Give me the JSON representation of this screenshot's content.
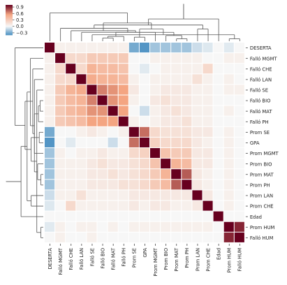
{
  "chart_data": {
    "type": "heatmap",
    "variant": "clustermap",
    "title": "",
    "row_labels": [
      "DESERTA",
      "Falló MGMT",
      "Falló CHE",
      "Falló LAN",
      "Falló SE",
      "Falló BIO",
      "Falló MAT",
      "Falló PH",
      "Prom SE",
      "GPA",
      "Prom MGMT",
      "Prom BIO",
      "Prom MAT",
      "Prom PH",
      "Prom LAN",
      "Prom CHE",
      "Edad",
      "Prom HUM",
      "Falló HUM"
    ],
    "col_labels": [
      "DESERTA",
      "Falló MGMT",
      "Falló CHE",
      "Falló LAN",
      "Falló SE",
      "Falló BIO",
      "Falló MAT",
      "Falló PH",
      "Prom SE",
      "GPA",
      "Prom MGMT",
      "Prom BIO",
      "Prom MAT",
      "Prom PH",
      "Prom LAN",
      "Prom CHE",
      "Edad",
      "Prom HUM",
      "Falló HUM"
    ],
    "matrix": [
      [
        1.0,
        0.05,
        0.05,
        0.05,
        0.05,
        0.05,
        0.05,
        0.05,
        -0.3,
        -0.38,
        -0.2,
        -0.2,
        -0.2,
        -0.2,
        -0.1,
        -0.06,
        0.0,
        -0.05,
        0.0
      ],
      [
        0.05,
        1.0,
        0.2,
        0.2,
        0.3,
        0.3,
        0.3,
        0.3,
        0.0,
        0.0,
        0.05,
        0.05,
        0.05,
        0.05,
        0.05,
        0.0,
        0.0,
        0.05,
        0.05
      ],
      [
        0.05,
        0.2,
        1.0,
        0.2,
        0.45,
        0.4,
        0.4,
        0.35,
        0.0,
        -0.05,
        0.0,
        0.05,
        0.05,
        0.05,
        0.05,
        0.2,
        0.0,
        0.0,
        0.0
      ],
      [
        0.05,
        0.2,
        0.2,
        1.0,
        0.5,
        0.45,
        0.45,
        0.4,
        0.05,
        0.0,
        0.05,
        0.05,
        0.05,
        0.05,
        0.15,
        0.05,
        0.0,
        0.05,
        0.0
      ],
      [
        0.05,
        0.3,
        0.45,
        0.5,
        1.0,
        0.65,
        0.6,
        0.55,
        0.1,
        0.0,
        0.05,
        0.1,
        0.1,
        0.1,
        0.05,
        0.05,
        0.0,
        0.05,
        0.05
      ],
      [
        0.05,
        0.3,
        0.4,
        0.45,
        0.65,
        1.0,
        0.6,
        0.55,
        0.05,
        0.0,
        0.1,
        0.15,
        0.1,
        0.1,
        0.05,
        0.05,
        0.0,
        0.0,
        0.0
      ],
      [
        0.05,
        0.3,
        0.4,
        0.45,
        0.6,
        0.6,
        1.0,
        0.55,
        0.0,
        -0.1,
        0.05,
        0.1,
        0.15,
        0.1,
        0.05,
        0.05,
        0.0,
        0.05,
        0.0
      ],
      [
        0.05,
        0.3,
        0.35,
        0.4,
        0.55,
        0.55,
        0.55,
        1.0,
        0.05,
        0.0,
        0.05,
        0.1,
        0.1,
        0.15,
        0.05,
        0.05,
        0.0,
        0.0,
        0.0
      ],
      [
        -0.3,
        0.0,
        0.0,
        0.05,
        0.1,
        0.05,
        0.0,
        0.05,
        1.0,
        0.7,
        0.2,
        0.15,
        0.15,
        0.15,
        0.1,
        0.1,
        0.0,
        0.05,
        0.0
      ],
      [
        -0.38,
        0.0,
        -0.05,
        0.0,
        0.0,
        0.0,
        -0.1,
        0.0,
        0.7,
        1.0,
        0.25,
        0.2,
        0.2,
        0.2,
        0.1,
        0.05,
        0.0,
        0.05,
        0.0
      ],
      [
        -0.2,
        0.05,
        0.0,
        0.05,
        0.05,
        0.1,
        0.05,
        0.05,
        0.2,
        0.25,
        1.0,
        0.35,
        0.3,
        0.3,
        0.1,
        0.1,
        0.0,
        0.05,
        0.0
      ],
      [
        -0.2,
        0.05,
        0.05,
        0.05,
        0.1,
        0.15,
        0.1,
        0.1,
        0.15,
        0.2,
        0.35,
        1.0,
        0.45,
        0.4,
        0.1,
        0.1,
        0.0,
        0.05,
        0.0
      ],
      [
        -0.2,
        0.05,
        0.05,
        0.05,
        0.1,
        0.1,
        0.15,
        0.1,
        0.15,
        0.2,
        0.3,
        0.45,
        1.0,
        0.75,
        0.1,
        0.05,
        0.0,
        0.05,
        0.0
      ],
      [
        -0.2,
        0.05,
        0.05,
        0.05,
        0.1,
        0.1,
        0.1,
        0.15,
        0.15,
        0.2,
        0.3,
        0.4,
        0.75,
        1.0,
        0.1,
        0.05,
        0.0,
        0.05,
        0.0
      ],
      [
        -0.1,
        0.05,
        0.05,
        0.15,
        0.05,
        0.05,
        0.05,
        0.05,
        0.1,
        0.1,
        0.1,
        0.1,
        0.1,
        0.1,
        1.0,
        0.1,
        0.0,
        0.05,
        0.0
      ],
      [
        -0.06,
        0.0,
        0.2,
        0.05,
        0.05,
        0.05,
        0.05,
        0.05,
        0.1,
        0.05,
        0.1,
        0.1,
        0.05,
        0.05,
        0.1,
        1.0,
        0.0,
        0.05,
        0.0
      ],
      [
        0.0,
        0.0,
        0.0,
        0.0,
        0.0,
        0.0,
        0.0,
        0.0,
        0.0,
        0.0,
        0.0,
        0.0,
        0.0,
        0.0,
        0.0,
        0.0,
        1.0,
        0.0,
        0.0
      ],
      [
        -0.05,
        0.05,
        0.0,
        0.05,
        0.05,
        0.0,
        0.05,
        0.0,
        0.05,
        0.05,
        0.05,
        0.05,
        0.05,
        0.05,
        0.05,
        0.05,
        0.0,
        1.0,
        0.9
      ],
      [
        0.0,
        0.05,
        0.0,
        0.0,
        0.05,
        0.0,
        0.0,
        0.0,
        0.0,
        0.0,
        0.0,
        0.0,
        0.0,
        0.0,
        0.0,
        0.0,
        0.0,
        0.9,
        1.0
      ]
    ],
    "colorbar": {
      "ticks": [
        0.9,
        0.6,
        0.3,
        0.0,
        -0.3
      ],
      "tick_labels": [
        "0.9",
        "0.6",
        "0.3",
        "0.0",
        "−0.3"
      ],
      "vmin": -0.4,
      "vmax": 1.0
    },
    "colors": {
      "cold": "#4a90c2",
      "neutral": "#f7f7f7",
      "warm_mid": "#f4a582",
      "warm": "#67001f",
      "grid": "#ffffff",
      "dendrogram": "#555555"
    },
    "dendrogram_row_order": [
      "DESERTA",
      "Falló MGMT",
      "Falló CHE",
      "Falló LAN",
      "Falló SE",
      "Falló BIO",
      "Falló MAT",
      "Falló PH",
      "Prom SE",
      "GPA",
      "Prom MGMT",
      "Prom BIO",
      "Prom MAT",
      "Prom PH",
      "Prom LAN",
      "Prom CHE",
      "Edad",
      "Prom HUM",
      "Falló HUM"
    ],
    "grid": false,
    "legend_placement": "top-left"
  }
}
